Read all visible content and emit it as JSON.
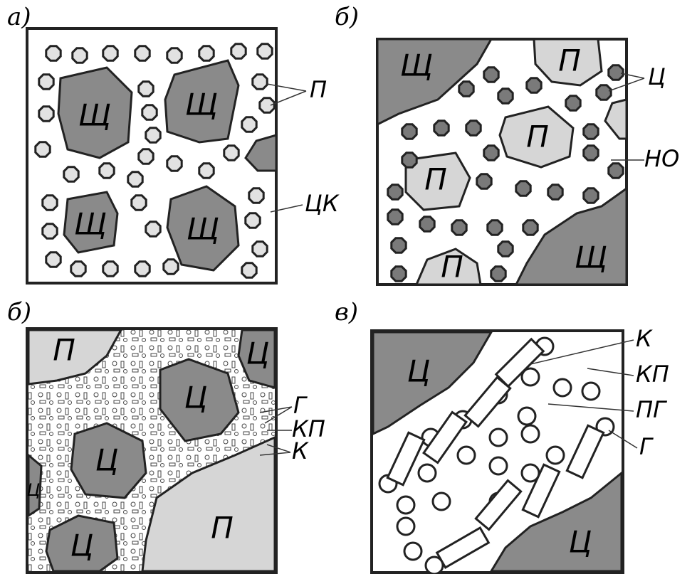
{
  "panels": [
    {
      "letter": "а)",
      "regions": [
        "Щ",
        "Щ",
        "Щ",
        "Щ"
      ],
      "callouts": [
        "П",
        "ЦК"
      ]
    },
    {
      "letter": "б)",
      "regions": [
        "Щ",
        "П",
        "П",
        "П",
        "П",
        "Щ"
      ],
      "callouts": [
        "Ц",
        "НО"
      ]
    },
    {
      "letter": "б)",
      "regions": [
        "П",
        "Ц",
        "Ц",
        "Ц",
        "Ц",
        "Ц",
        "П"
      ],
      "callouts": [
        "Г",
        "КП",
        "К"
      ]
    },
    {
      "letter": "в)",
      "regions": [
        "Ц",
        "Ц"
      ],
      "callouts": [
        "К",
        "КП",
        "ПГ",
        "Г"
      ]
    }
  ]
}
